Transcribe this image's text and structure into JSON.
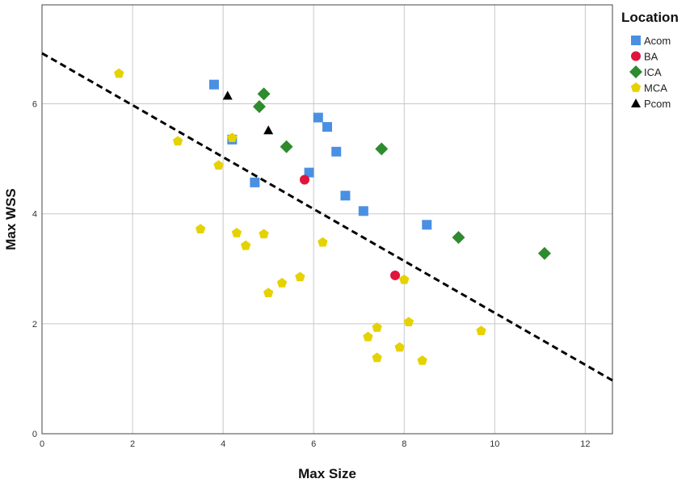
{
  "chart_data": {
    "type": "scatter",
    "xlabel": "Max Size",
    "ylabel": "Max WSS",
    "xlim": [
      0,
      12.6
    ],
    "ylim": [
      0,
      7.8
    ],
    "x_ticks": [
      "0",
      "2",
      "4",
      "6",
      "8",
      "10",
      "12"
    ],
    "y_ticks": [
      "0",
      "2",
      "4",
      "6"
    ],
    "grid": true,
    "legend": {
      "title": "Location",
      "position": "top-right"
    },
    "series": [
      {
        "name": "Acom",
        "marker": "square",
        "color": "#4a90e2",
        "points": [
          [
            3.8,
            6.35
          ],
          [
            4.2,
            5.35
          ],
          [
            4.7,
            4.57
          ],
          [
            5.9,
            4.75
          ],
          [
            6.1,
            5.75
          ],
          [
            6.3,
            5.58
          ],
          [
            6.5,
            5.13
          ],
          [
            6.7,
            4.33
          ],
          [
            7.1,
            4.05
          ],
          [
            8.5,
            3.8
          ]
        ]
      },
      {
        "name": "BA",
        "marker": "circle",
        "color": "#e0143c",
        "points": [
          [
            5.8,
            4.62
          ],
          [
            7.8,
            2.88
          ]
        ]
      },
      {
        "name": "ICA",
        "marker": "diamond",
        "color": "#2e8b2e",
        "points": [
          [
            4.8,
            5.95
          ],
          [
            4.9,
            6.18
          ],
          [
            5.4,
            5.22
          ],
          [
            7.5,
            5.18
          ],
          [
            9.2,
            3.57
          ],
          [
            11.1,
            3.28
          ]
        ]
      },
      {
        "name": "MCA",
        "marker": "pentagon",
        "color": "#e6d200",
        "points": [
          [
            1.7,
            6.55
          ],
          [
            3.0,
            5.32
          ],
          [
            3.5,
            3.72
          ],
          [
            3.9,
            4.88
          ],
          [
            4.2,
            5.38
          ],
          [
            4.3,
            3.65
          ],
          [
            4.5,
            3.42
          ],
          [
            4.9,
            3.63
          ],
          [
            5.0,
            2.56
          ],
          [
            5.3,
            2.74
          ],
          [
            5.7,
            2.85
          ],
          [
            6.2,
            3.48
          ],
          [
            7.2,
            1.76
          ],
          [
            7.4,
            1.93
          ],
          [
            7.4,
            1.38
          ],
          [
            7.9,
            1.57
          ],
          [
            8.0,
            2.8
          ],
          [
            8.1,
            2.03
          ],
          [
            8.4,
            1.33
          ],
          [
            9.7,
            1.87
          ]
        ]
      },
      {
        "name": "Pcom",
        "marker": "triangle",
        "color": "#000000",
        "points": [
          [
            4.1,
            6.15
          ],
          [
            5.0,
            5.52
          ]
        ]
      }
    ],
    "fit_line": {
      "style": "dashed",
      "color": "#000000",
      "from": [
        0,
        6.92
      ],
      "to": [
        12.6,
        0.97
      ]
    }
  }
}
